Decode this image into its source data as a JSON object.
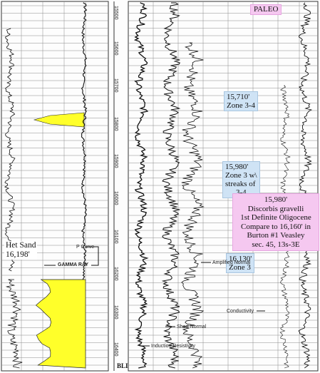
{
  "header": {
    "paleo_label": "PALEO"
  },
  "depth_ticks": [
    "15500",
    "15600",
    "15700",
    "15800",
    "15900",
    "16000",
    "16100",
    "16200",
    "16300",
    "16400"
  ],
  "bottom_label": "BLI",
  "annotations": {
    "het_sand": {
      "line1": "Het Sand",
      "line2": "16,198'"
    },
    "p_curve": "P Curve",
    "gamma_ray": "GAMMA RAY",
    "conductivity": "Conductivity",
    "short_normal": "Short Normal",
    "induction_resistivity": "Induction Resistivity",
    "amplified_normal": "Amplified Normal"
  },
  "zone_boxes": [
    {
      "line1": "15,710'",
      "line2": "Zone 3-4"
    },
    {
      "line1": "15,980'",
      "line2": "Zone 3 w\\",
      "line3": "streaks of",
      "line4": "3-4"
    },
    {
      "line1": "16,130'",
      "line2": "Zone 3"
    }
  ],
  "paleo_box": {
    "line1": "15,980'",
    "line2": "Discorbis gravelli",
    "line3": "1st Definite Oligocene",
    "line4": "Compare to 16,160' in",
    "line5": "Burton #1 Veasley",
    "line6": "sec. 45, 13s-3E"
  },
  "colors": {
    "sand_fill": "#ffff2a",
    "zone_box": "#cfe3f5",
    "paleo_box": "#f5c8f0",
    "grid": "#8a8a8a"
  }
}
